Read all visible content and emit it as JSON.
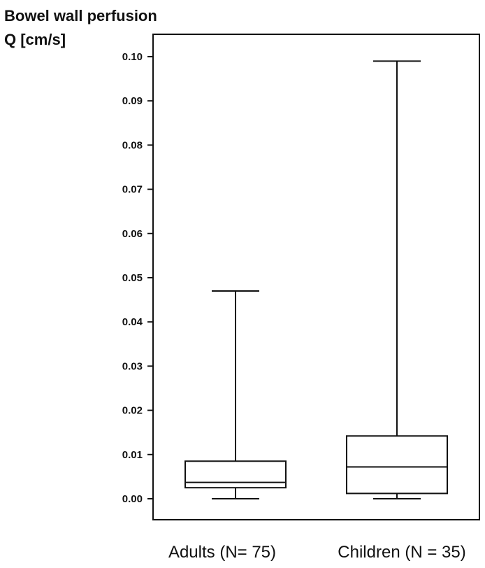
{
  "chart_data": {
    "type": "boxplot",
    "title": "Bowel wall perfusion",
    "ylabel": "Q [cm/s]",
    "xlabel": "",
    "ylim": [
      0.0,
      0.1
    ],
    "yticks": [
      "0.00",
      "0.01",
      "0.02",
      "0.03",
      "0.04",
      "0.05",
      "0.06",
      "0.07",
      "0.08",
      "0.09",
      "0.10"
    ],
    "grid": false,
    "categories": [
      "Adults (N= 75)",
      "Children (N = 35)"
    ],
    "boxes": [
      {
        "category": "Adults (N= 75)",
        "min": 0.0,
        "q1": 0.0025,
        "median": 0.0037,
        "q3": 0.0085,
        "max": 0.047
      },
      {
        "category": "Children (N = 35)",
        "min": 0.0,
        "q1": 0.0012,
        "median": 0.0072,
        "q3": 0.0142,
        "max": 0.099
      }
    ],
    "colors": {
      "line": "#111111",
      "background": "#ffffff"
    }
  }
}
